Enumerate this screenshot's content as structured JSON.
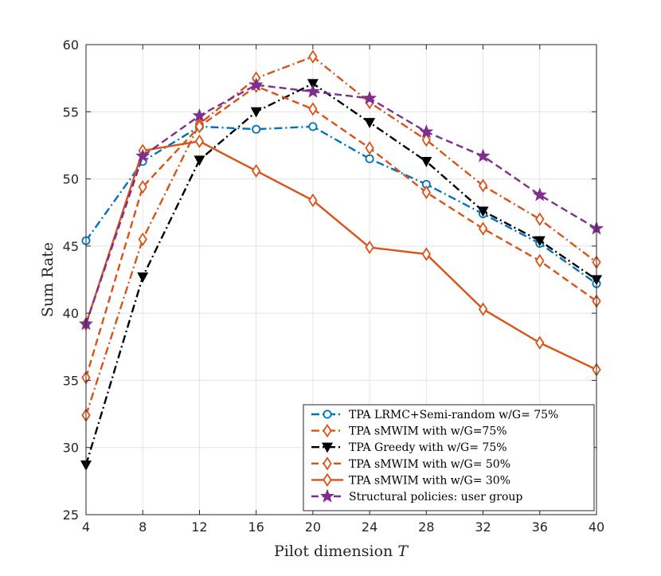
{
  "chart_data": {
    "type": "line",
    "title": "",
    "xlabel": "Pilot dimension",
    "xlabel_symbol": "T",
    "ylabel": "Sum Rate",
    "x": [
      4,
      8,
      12,
      16,
      20,
      24,
      28,
      32,
      36,
      40
    ],
    "xlim": [
      4,
      40
    ],
    "ylim": [
      25,
      60
    ],
    "xticks": [
      "4",
      "8",
      "12",
      "16",
      "20",
      "24",
      "28",
      "32",
      "36",
      "40"
    ],
    "yticks": [
      "25",
      "30",
      "35",
      "40",
      "45",
      "50",
      "55",
      "60"
    ],
    "grid": true,
    "legend_position": "bottom-right",
    "series": [
      {
        "name": "TPA LRMC+Semi-random w/G= 75%",
        "color": "#0072BD",
        "line": "dashdot",
        "marker": "circle",
        "values": [
          45.4,
          51.3,
          53.9,
          53.7,
          53.9,
          51.5,
          49.6,
          47.4,
          45.2,
          42.2
        ]
      },
      {
        "name": "TPA sMWIM with w/G=75%",
        "color": "#D95319",
        "line": "dashdot",
        "marker": "diamond",
        "values": [
          32.4,
          45.5,
          54.1,
          57.5,
          59.1,
          55.7,
          52.9,
          49.5,
          47.0,
          43.8
        ]
      },
      {
        "name": "TPA Greedy with w/G= 75%",
        "color": "#000000",
        "line": "dashdot",
        "marker": "triangle-down",
        "values": [
          28.7,
          42.7,
          51.4,
          55.0,
          57.1,
          54.2,
          51.3,
          47.6,
          45.4,
          42.5
        ]
      },
      {
        "name": "TPA sMWIM with w/G= 50%",
        "color": "#D95319",
        "line": "dashed",
        "marker": "diamond",
        "values": [
          35.2,
          49.4,
          53.9,
          56.9,
          55.2,
          52.3,
          49.0,
          46.3,
          43.9,
          40.9
        ]
      },
      {
        "name": "TPA sMWIM with w/G= 30%",
        "color": "#D95319",
        "line": "solid",
        "marker": "diamond",
        "values": [
          39.2,
          52.1,
          52.8,
          50.6,
          48.4,
          44.9,
          44.4,
          40.3,
          37.8,
          35.8
        ]
      },
      {
        "name": "Structural policies: user group",
        "color": "#7E2F8E",
        "line": "dashed",
        "marker": "star",
        "values": [
          39.2,
          51.7,
          54.7,
          57.0,
          56.5,
          56.0,
          53.5,
          51.7,
          48.8,
          46.3
        ]
      }
    ]
  }
}
